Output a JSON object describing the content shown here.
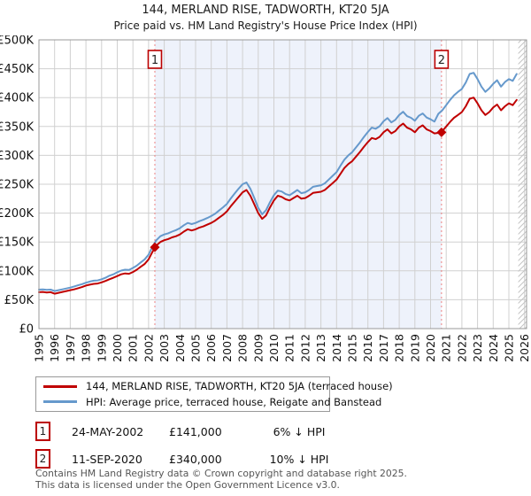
{
  "header": {
    "title": "144, MERLAND RISE, TADWORTH, KT20 5JA",
    "subtitle": "Price paid vs. HM Land Registry's House Price Index (HPI)"
  },
  "legend": {
    "items": [
      {
        "label": "144, MERLAND RISE, TADWORTH, KT20 5JA (terraced house)",
        "color": "#c00000"
      },
      {
        "label": "HPI: Average price, terraced house, Reigate and Banstead",
        "color": "#6699cc"
      }
    ]
  },
  "annotations": [
    {
      "num": "1",
      "date": "24-MAY-2002",
      "price": "£141,000",
      "hpi_diff": "6% ↓ HPI"
    },
    {
      "num": "2",
      "date": "11-SEP-2020",
      "price": "£340,000",
      "hpi_diff": "10% ↓ HPI"
    }
  ],
  "footer": {
    "line1": "Contains HM Land Registry data © Crown copyright and database right 2025.",
    "line2": "This data is licensed under the Open Government Licence v3.0."
  },
  "chart_data": {
    "type": "line",
    "title": "144, MERLAND RISE, TADWORTH, KT20 5JA",
    "subtitle": "Price paid vs. HM Land Registry's House Price Index (HPI)",
    "xlabel": "",
    "ylabel": "",
    "units": "GBP thousands",
    "xlim": [
      1995,
      2026.13
    ],
    "ylim": [
      0,
      500
    ],
    "x_start": 1995.0,
    "x_step": 0.25,
    "grid": true,
    "legend_position": "bottom",
    "y_ticks": [
      {
        "value": 0,
        "label": "£0"
      },
      {
        "value": 50,
        "label": "£50K"
      },
      {
        "value": 100,
        "label": "£100K"
      },
      {
        "value": 150,
        "label": "£150K"
      },
      {
        "value": 200,
        "label": "£200K"
      },
      {
        "value": 250,
        "label": "£250K"
      },
      {
        "value": 300,
        "label": "£300K"
      },
      {
        "value": 350,
        "label": "£350K"
      },
      {
        "value": 400,
        "label": "£400K"
      },
      {
        "value": 450,
        "label": "£450K"
      },
      {
        "value": 500,
        "label": "£500K"
      }
    ],
    "x_ticks": [
      1995,
      1996,
      1997,
      1998,
      1999,
      2000,
      2001,
      2002,
      2003,
      2004,
      2005,
      2006,
      2007,
      2008,
      2009,
      2010,
      2011,
      2012,
      2013,
      2014,
      2015,
      2016,
      2017,
      2018,
      2019,
      2020,
      2021,
      2022,
      2023,
      2024,
      2025,
      2026
    ],
    "series": [
      {
        "name": "144, MERLAND RISE, TADWORTH, KT20 5JA (terraced house)",
        "color": "#c00000",
        "values": [
          63,
          63.5,
          62.5,
          63,
          60.5,
          62,
          63.5,
          65,
          66.5,
          68,
          70,
          72,
          74.5,
          76,
          77.5,
          78,
          80,
          82.5,
          85.5,
          88,
          91,
          94,
          95.5,
          95,
          98,
          102,
          107,
          112,
          120,
          133,
          144,
          150,
          153,
          155,
          158,
          160,
          163,
          168,
          172,
          170,
          172,
          175,
          177,
          180,
          183,
          187,
          192,
          197,
          203,
          212,
          220,
          228,
          236,
          240,
          230,
          215,
          200,
          190,
          196,
          210,
          222,
          230,
          228,
          224,
          222,
          226,
          230,
          225,
          226,
          230,
          235,
          236,
          237,
          240,
          246,
          252,
          258,
          268,
          278,
          285,
          290,
          298,
          306,
          315,
          323,
          330,
          328,
          332,
          340,
          345,
          338,
          342,
          350,
          355,
          348,
          345,
          340,
          348,
          352,
          345,
          342,
          338,
          339,
          342,
          350,
          358,
          365,
          370,
          375,
          385,
          398,
          400,
          390,
          378,
          370,
          375,
          383,
          388,
          378,
          385,
          390,
          387,
          396
        ]
      },
      {
        "name": "HPI: Average price, terraced house, Reigate and Banstead",
        "color": "#6699cc",
        "values": [
          67.5,
          68,
          67,
          67.5,
          65,
          66.5,
          68,
          69.5,
          71,
          73,
          75,
          77,
          79.5,
          81.5,
          83,
          83.5,
          85.5,
          88,
          91.5,
          94,
          97.5,
          100.5,
          102,
          101.5,
          105,
          109,
          114.5,
          120,
          128,
          142,
          153,
          160,
          163,
          165,
          168,
          170.5,
          174,
          179,
          183,
          181,
          183,
          186,
          188.5,
          191.5,
          195,
          199,
          204.5,
          210,
          216,
          225.5,
          234,
          242.5,
          250,
          253,
          242,
          226,
          209,
          198,
          205,
          219,
          231,
          239,
          237.5,
          233,
          231,
          235.5,
          240,
          234.5,
          236,
          240,
          245.5,
          247,
          248,
          251.5,
          258,
          264.5,
          271,
          282,
          292.5,
          300,
          305.5,
          314,
          322.5,
          332,
          340.5,
          348,
          346,
          350.5,
          359,
          364.5,
          357,
          361.5,
          370,
          375.5,
          368,
          365,
          360,
          368.5,
          372.5,
          365.5,
          362.5,
          358.5,
          372,
          378,
          387,
          396,
          404,
          410,
          415,
          426,
          441,
          443,
          432,
          419,
          410,
          416,
          424,
          430,
          419,
          427,
          432,
          429,
          441
        ]
      }
    ],
    "markers": [
      {
        "label": "1",
        "x": 2002.4,
        "y": 141,
        "display_price": "£141,000"
      },
      {
        "label": "2",
        "x": 2020.7,
        "y": 340,
        "display_price": "£340,000"
      }
    ],
    "shaded_region": [
      2002.4,
      2020.7
    ],
    "hatch_region": [
      2025.6,
      2026.13
    ],
    "colors": {
      "band": "#eef2fb",
      "grid": "#d0d0d0",
      "border": "#999999",
      "dashed": "#ec8181",
      "hatch": "#c4c4c4",
      "marker_box_border": "#bb0000",
      "tick_text": "#111111"
    }
  }
}
